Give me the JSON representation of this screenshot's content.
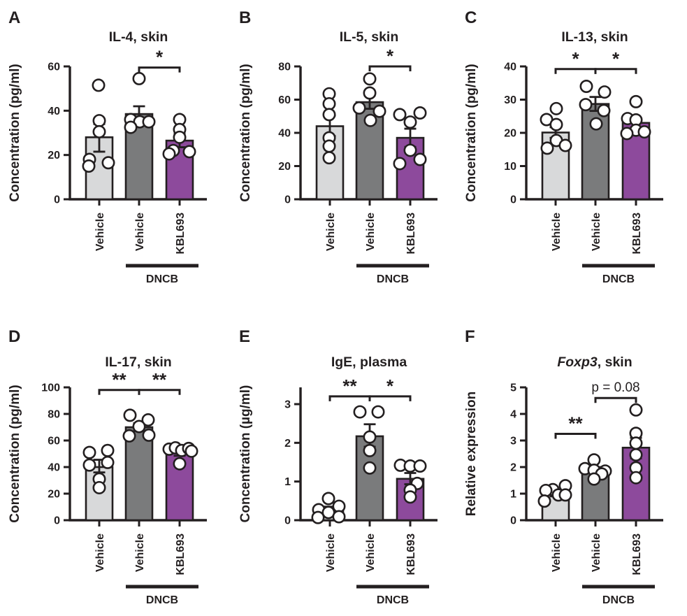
{
  "figure": {
    "background": "#ffffff",
    "outline_color": "#231f20",
    "bar_colors": [
      "#d8d9da",
      "#7a7b7c",
      "#8d4a9c"
    ],
    "point_fill": "#ffffff",
    "group_label": "DNCB"
  },
  "chart_data": [
    {
      "panel": "A",
      "type": "bar",
      "title": "IL-4, skin",
      "ylabel": "Concentration (pg/ml)",
      "ylim": [
        0,
        60
      ],
      "yticks": [
        0,
        20,
        40,
        60
      ],
      "categories": [
        "Vehicle",
        "Vehicle",
        "KBL693"
      ],
      "group_label": "DNCB",
      "group_bars": [
        1,
        2
      ],
      "series": [
        {
          "name": "Vehicle",
          "mean": 28,
          "sem": [
            21.5,
            34
          ],
          "points": [
            [
              51.5,
              -1
            ],
            [
              35.5,
              0
            ],
            [
              30.5,
              0
            ],
            [
              18,
              -14
            ],
            [
              15,
              -15
            ],
            [
              16.5,
              13
            ]
          ]
        },
        {
          "name": "Vehicle (DNCB)",
          "mean": 38.5,
          "sem": [
            35.5,
            42
          ],
          "points": [
            [
              54.5,
              0
            ],
            [
              36,
              -12
            ],
            [
              35,
              1
            ],
            [
              35,
              14
            ],
            [
              32.5,
              -12
            ]
          ]
        },
        {
          "name": "KBL693 (DNCB)",
          "mean": 26.5,
          "sem": [
            23.5,
            29.5
          ],
          "points": [
            [
              36,
              0
            ],
            [
              31.5,
              0
            ],
            [
              28,
              0
            ],
            [
              22,
              -9
            ],
            [
              20.5,
              -15
            ],
            [
              21.5,
              14
            ]
          ]
        }
      ],
      "significance": [
        {
          "from": 1,
          "to": 2,
          "label": "*",
          "y": 59.5
        }
      ]
    },
    {
      "panel": "B",
      "type": "bar",
      "title": "IL-5, skin",
      "ylabel": "Concentration (pg/ml)",
      "ylim": [
        0,
        80
      ],
      "yticks": [
        0,
        20,
        40,
        60,
        80
      ],
      "categories": [
        "Vehicle",
        "Vehicle",
        "KBL693"
      ],
      "group_label": "DNCB",
      "group_bars": [
        1,
        2
      ],
      "series": [
        {
          "name": "Vehicle",
          "mean": 44,
          "sem": [
            38,
            50.5
          ],
          "points": [
            [
              63.5,
              -1
            ],
            [
              57.5,
              -1
            ],
            [
              51,
              -1
            ],
            [
              37,
              -1
            ],
            [
              32,
              -1
            ],
            [
              25,
              -1
            ]
          ]
        },
        {
          "name": "Vehicle (DNCB)",
          "mean": 58.5,
          "sem": [
            54.5,
            62.5
          ],
          "points": [
            [
              72.5,
              0
            ],
            [
              64,
              0
            ],
            [
              55,
              -15
            ],
            [
              53,
              14
            ],
            [
              47.5,
              1
            ]
          ]
        },
        {
          "name": "KBL693 (DNCB)",
          "mean": 37,
          "sem": [
            31.5,
            42.5
          ],
          "points": [
            [
              51,
              -15
            ],
            [
              46.5,
              0
            ],
            [
              52,
              14
            ],
            [
              29.5,
              0
            ],
            [
              21.5,
              -15
            ],
            [
              24,
              14
            ]
          ]
        }
      ],
      "significance": [
        {
          "from": 1,
          "to": 2,
          "label": "*",
          "y": 80
        }
      ]
    },
    {
      "panel": "C",
      "type": "bar",
      "title": "IL-13, skin",
      "ylabel": "Concentration (pg/ml)",
      "ylim": [
        0,
        40
      ],
      "yticks": [
        0,
        10,
        20,
        30,
        40
      ],
      "categories": [
        "Vehicle",
        "Vehicle",
        "KBL693"
      ],
      "group_label": "DNCB",
      "group_bars": [
        1,
        2
      ],
      "series": [
        {
          "name": "Vehicle",
          "mean": 20.1,
          "sem": [
            18.5,
            21.7
          ],
          "points": [
            [
              27.3,
              1
            ],
            [
              24,
              -13
            ],
            [
              22.5,
              1
            ],
            [
              17.7,
              1
            ],
            [
              15.4,
              -12
            ],
            [
              16.2,
              14
            ]
          ]
        },
        {
          "name": "Vehicle (DNCB)",
          "mean": 28.7,
          "sem": [
            26.6,
            30.8
          ],
          "points": [
            [
              34,
              -13
            ],
            [
              32.3,
              13
            ],
            [
              28.5,
              -14
            ],
            [
              26.7,
              12
            ],
            [
              22.7,
              1
            ]
          ]
        },
        {
          "name": "KBL693 (DNCB)",
          "mean": 23,
          "sem": [
            21.6,
            24.5
          ],
          "points": [
            [
              29.4,
              0
            ],
            [
              24.3,
              -12
            ],
            [
              23.9,
              0
            ],
            [
              20.8,
              0
            ],
            [
              19.8,
              -13
            ],
            [
              20.3,
              12
            ]
          ]
        }
      ],
      "significance": [
        {
          "from": 0,
          "to": 1,
          "label": "*",
          "y": 39.2
        },
        {
          "from": 1,
          "to": 2,
          "label": "*",
          "y": 39.2
        }
      ]
    },
    {
      "panel": "D",
      "type": "bar",
      "title": "IL-17, skin",
      "ylabel": "Concentration (pg/ml)",
      "ylim": [
        0,
        100
      ],
      "yticks": [
        0,
        20,
        40,
        60,
        80,
        100
      ],
      "categories": [
        "Vehicle",
        "Vehicle",
        "KBL693"
      ],
      "group_label": "DNCB",
      "group_bars": [
        1,
        2
      ],
      "series": [
        {
          "name": "Vehicle",
          "mean": 40,
          "sem": [
            36,
            45.5
          ],
          "points": [
            [
              51,
              -14
            ],
            [
              52.5,
              12
            ],
            [
              43.5,
              12
            ],
            [
              41.5,
              -14
            ],
            [
              31,
              0
            ],
            [
              24.5,
              0
            ]
          ]
        },
        {
          "name": "Vehicle (DNCB)",
          "mean": 70,
          "sem": [
            67,
            73
          ],
          "points": [
            [
              79,
              -13
            ],
            [
              75.5,
              13
            ],
            [
              70.5,
              0
            ],
            [
              63.5,
              -14
            ],
            [
              64,
              14
            ]
          ]
        },
        {
          "name": "KBL693 (DNCB)",
          "mean": 51,
          "sem": [
            48.5,
            53
          ],
          "points": [
            [
              53.5,
              -15
            ],
            [
              54.5,
              -6
            ],
            [
              52.5,
              3
            ],
            [
              54,
              13
            ],
            [
              52,
              17
            ],
            [
              42.5,
              0
            ]
          ]
        }
      ],
      "significance": [
        {
          "from": 0,
          "to": 1,
          "label": "**",
          "y": 98
        },
        {
          "from": 1,
          "to": 2,
          "label": "**",
          "y": 98
        }
      ]
    },
    {
      "panel": "E",
      "type": "bar",
      "title": "IgE, plasma",
      "ylabel": "Concentration (µg/ml)",
      "ylim": [
        0,
        3
      ],
      "yticks": [
        0,
        1,
        2,
        3
      ],
      "categories": [
        "Vehicle",
        "Vehicle",
        "KBL693"
      ],
      "group_label": "DNCB",
      "group_bars": [
        1,
        2
      ],
      "series": [
        {
          "name": "Vehicle",
          "mean": 0.27,
          "sem": [
            0.2,
            0.35
          ],
          "points": [
            [
              0.56,
              -2
            ],
            [
              0.36,
              13
            ],
            [
              0.27,
              -16
            ],
            [
              0.2,
              -2
            ],
            [
              0.07,
              -17
            ],
            [
              0.09,
              13
            ]
          ]
        },
        {
          "name": "Vehicle (DNCB)",
          "mean": 2.17,
          "sem": [
            1.9,
            2.48
          ],
          "points": [
            [
              2.8,
              -14
            ],
            [
              2.8,
              12
            ],
            [
              2.15,
              0
            ],
            [
              1.8,
              0
            ],
            [
              1.35,
              0
            ]
          ]
        },
        {
          "name": "KBL693 (DNCB)",
          "mean": 1.07,
          "sem": [
            0.93,
            1.22
          ],
          "points": [
            [
              1.42,
              -14
            ],
            [
              1.4,
              0
            ],
            [
              1.4,
              14
            ],
            [
              0.95,
              10
            ],
            [
              0.78,
              0
            ],
            [
              0.6,
              0
            ]
          ]
        }
      ],
      "significance": [
        {
          "from": 0,
          "to": 1,
          "label": "**",
          "y": 3.2
        },
        {
          "from": 1,
          "to": 2,
          "label": "*",
          "y": 3.2
        }
      ]
    },
    {
      "panel": "F",
      "type": "bar",
      "title": "Foxp3, skin",
      "title_italic_prefix": "Foxp3",
      "ylabel": "Relative expression",
      "ylim": [
        0,
        5
      ],
      "yticks": [
        0,
        1,
        2,
        3,
        4,
        5
      ],
      "categories": [
        "Vehicle",
        "Vehicle",
        "KBL693"
      ],
      "group_label": "DNCB",
      "group_bars": [
        1,
        2
      ],
      "series": [
        {
          "name": "Vehicle",
          "mean": 1.0,
          "sem": [
            0.9,
            1.1
          ],
          "points": [
            [
              1.3,
              14
            ],
            [
              1.15,
              -4
            ],
            [
              1.12,
              -14
            ],
            [
              0.95,
              4
            ],
            [
              0.95,
              14
            ],
            [
              0.72,
              -16
            ]
          ]
        },
        {
          "name": "Vehicle (DNCB)",
          "mean": 1.9,
          "sem": [
            1.72,
            2.0
          ],
          "points": [
            [
              2.27,
              -2
            ],
            [
              1.94,
              -15
            ],
            [
              1.88,
              -2
            ],
            [
              1.85,
              14
            ],
            [
              1.74,
              9
            ],
            [
              1.55,
              -2
            ]
          ]
        },
        {
          "name": "KBL693 (DNCB)",
          "mean": 2.73,
          "sem": [
            2.33,
            3.1
          ],
          "points": [
            [
              4.15,
              0
            ],
            [
              3.27,
              0
            ],
            [
              2.9,
              0
            ],
            [
              2.46,
              0
            ],
            [
              1.97,
              0
            ],
            [
              1.6,
              0
            ]
          ]
        }
      ],
      "significance": [
        {
          "from": 0,
          "to": 1,
          "label": "**",
          "y": 3.25
        },
        {
          "from": 1,
          "to": 2,
          "label": "p = 0.08",
          "y": 4.6
        }
      ]
    }
  ]
}
